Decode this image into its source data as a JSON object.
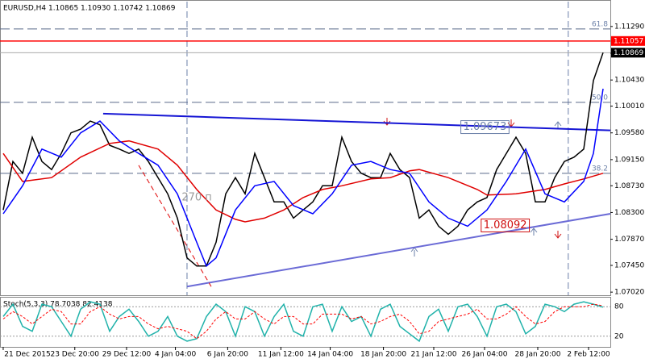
{
  "chart_data": [
    {
      "type": "line",
      "title": "EURUSD,H4  1.10865 1.10930 1.10742 1.10869",
      "xlim": [
        -0.33,
        62.75
      ],
      "ylim": [
        1.0697,
        1.1169
      ],
      "yticks": [
        {
          "value": 1.1129,
          "label": "1.11290"
        },
        {
          "value": 1.1086,
          "label": "1.10860"
        },
        {
          "value": 1.1043,
          "label": "1.10430"
        },
        {
          "value": 1.1001,
          "label": "1.10010"
        },
        {
          "value": 1.0958,
          "label": "1.09580"
        },
        {
          "value": 1.0915,
          "label": "1.09150"
        },
        {
          "value": 1.0873,
          "label": "1.08730"
        },
        {
          "value": 1.083,
          "label": "1.08300"
        },
        {
          "value": 1.0787,
          "label": "1.07870"
        },
        {
          "value": 1.0745,
          "label": "1.07450"
        },
        {
          "value": 1.0702,
          "label": "1.07020"
        }
      ],
      "xticks": [
        {
          "value": 0,
          "label": "21 Dec 2015"
        },
        {
          "value": 7.4,
          "label": "23 Dec 20:00"
        },
        {
          "value": 12.75,
          "label": "29 Dec 12:00"
        },
        {
          "value": 17.8,
          "label": "4 Jan 04:00"
        },
        {
          "value": 23.2,
          "label": "6 Jan 20:00"
        },
        {
          "value": 28.7,
          "label": "11 Jan 12:00"
        },
        {
          "value": 33.8,
          "label": "14 Jan 04:00"
        },
        {
          "value": 39.3,
          "label": "18 Jan 20:00"
        },
        {
          "value": 44.5,
          "label": "21 Jan 12:00"
        },
        {
          "value": 49.75,
          "label": "26 Jan 04:00"
        },
        {
          "value": 55.25,
          "label": "28 Jan 20:00"
        },
        {
          "value": 60.5,
          "label": "2 Feb 12:00"
        }
      ],
      "series": [
        {
          "color": "#000000",
          "values": [
            1.0834,
            1.0912,
            1.0893,
            1.0951,
            1.0912,
            1.0899,
            1.0925,
            1.0958,
            1.0964,
            1.0977,
            1.0971,
            1.0938,
            1.0932,
            1.0925,
            1.0932,
            1.0912,
            1.0886,
            1.086,
            1.0821,
            1.0757,
            1.0744,
            1.0744,
            1.0782,
            1.086,
            1.0886,
            1.086,
            1.0925,
            1.0886,
            1.0847,
            1.0847,
            1.0821,
            1.0834,
            1.0847,
            1.0873,
            1.0873,
            1.0951,
            1.0912,
            1.0893,
            1.0886,
            1.0886,
            1.0925,
            1.0899,
            1.0886,
            1.0821,
            1.0834,
            1.0808,
            1.0795,
            1.0808,
            1.0834,
            1.0847,
            1.0854,
            1.0899,
            1.0925,
            1.0951,
            1.0925,
            1.0847,
            1.0847,
            1.0886,
            1.0912,
            1.0919,
            1.0932,
            1.1042,
            1.1087
          ]
        },
        {
          "color": "#e00000",
          "x": [
            0,
            2,
            5,
            8,
            11,
            13,
            16,
            18,
            20,
            22,
            24,
            25,
            27,
            29,
            31,
            33,
            35,
            38,
            40,
            42,
            43,
            46,
            49,
            50,
            53,
            56,
            58,
            60,
            62
          ],
          "values": [
            1.0925,
            1.088,
            1.0886,
            1.0919,
            1.0941,
            1.0945,
            1.0932,
            1.0906,
            1.0867,
            1.0834,
            1.0819,
            1.0815,
            1.0821,
            1.0834,
            1.0854,
            1.0867,
            1.0873,
            1.0884,
            1.0886,
            1.0897,
            1.0899,
            1.0886,
            1.0867,
            1.0858,
            1.086,
            1.0867,
            1.0876,
            1.0884,
            1.0893
          ]
        },
        {
          "color": "#0000ff",
          "x": [
            0,
            2,
            4,
            6,
            8,
            10,
            12,
            14,
            16,
            18,
            20,
            21,
            22,
            24,
            26,
            28,
            30,
            32,
            34,
            36,
            38,
            40,
            42,
            44,
            46,
            48,
            50,
            52,
            54,
            56,
            58,
            60,
            61,
            62
          ],
          "values": [
            1.0828,
            1.0873,
            1.0932,
            1.0919,
            1.0958,
            1.0977,
            1.0945,
            1.0925,
            1.0906,
            1.086,
            1.0782,
            1.0744,
            1.0757,
            1.0834,
            1.0873,
            1.088,
            1.0841,
            1.0828,
            1.086,
            1.0906,
            1.0912,
            1.0899,
            1.0893,
            1.0847,
            1.0821,
            1.0808,
            1.0834,
            1.088,
            1.0932,
            1.086,
            1.0847,
            1.088,
            1.0925,
            1.1029
          ]
        }
      ],
      "levels": [
        {
          "value": 1.1125,
          "label": "61.8"
        },
        {
          "value": 1.1007,
          "label": "50.0"
        },
        {
          "value": 1.0893,
          "label": "38.2"
        }
      ],
      "price_marks": [
        {
          "value": 1.11057,
          "label": "1.11057",
          "color": "#ff0000"
        },
        {
          "value": 1.10869,
          "label": "1.10869",
          "color": "#000000"
        }
      ],
      "trendlines": [
        {
          "color": "#1515d4",
          "x": [
            10.33,
            62.75
          ],
          "y": [
            1.0989,
            1.0962
          ]
        },
        {
          "color": "#6b6bd6",
          "x": [
            19,
            62.75
          ],
          "y": [
            1.0711,
            1.0828
          ]
        },
        {
          "color": "#e00000",
          "dashed": true,
          "x": [
            14,
            21.5
          ],
          "y": [
            1.0906,
            1.0711
          ]
        }
      ],
      "vlines": [
        19,
        58.4
      ],
      "annotations": [
        {
          "x": 47.3,
          "value": 1.09673,
          "label": "1.09673",
          "color": "#6a7fa8"
        },
        {
          "x": 49.4,
          "value": 1.08092,
          "label": "1.08092",
          "color": "#d01010"
        },
        {
          "x": 18.2,
          "value": 1.0854,
          "label": "270 п",
          "color": "#9a9a9a"
        }
      ]
    },
    {
      "type": "line",
      "title": "Stoch(5,3,3) 78.7038 82.4138",
      "ylim": [
        0,
        100
      ],
      "yticks": [
        20,
        80
      ],
      "series": [
        {
          "color": "#20b2aa",
          "values": [
            60,
            85,
            40,
            30,
            85,
            80,
            50,
            20,
            75,
            90,
            85,
            30,
            60,
            75,
            50,
            20,
            30,
            60,
            20,
            10,
            15,
            60,
            85,
            70,
            20,
            80,
            70,
            20,
            60,
            85,
            30,
            20,
            80,
            85,
            30,
            80,
            50,
            60,
            20,
            75,
            85,
            40,
            25,
            10,
            60,
            75,
            30,
            80,
            85,
            60,
            20,
            80,
            85,
            70,
            25,
            40,
            85,
            80,
            70,
            85,
            90,
            85,
            79
          ]
        },
        {
          "color": "#ff0000",
          "dashed": true,
          "values": [
            55,
            70,
            60,
            45,
            60,
            75,
            70,
            45,
            45,
            70,
            80,
            65,
            55,
            60,
            60,
            45,
            35,
            40,
            35,
            30,
            15,
            30,
            55,
            70,
            55,
            55,
            70,
            55,
            45,
            60,
            60,
            45,
            45,
            65,
            65,
            65,
            55,
            60,
            45,
            50,
            60,
            65,
            50,
            25,
            30,
            50,
            55,
            60,
            65,
            75,
            55,
            55,
            65,
            80,
            60,
            45,
            50,
            70,
            80,
            80,
            80,
            85,
            82
          ]
        }
      ]
    }
  ]
}
